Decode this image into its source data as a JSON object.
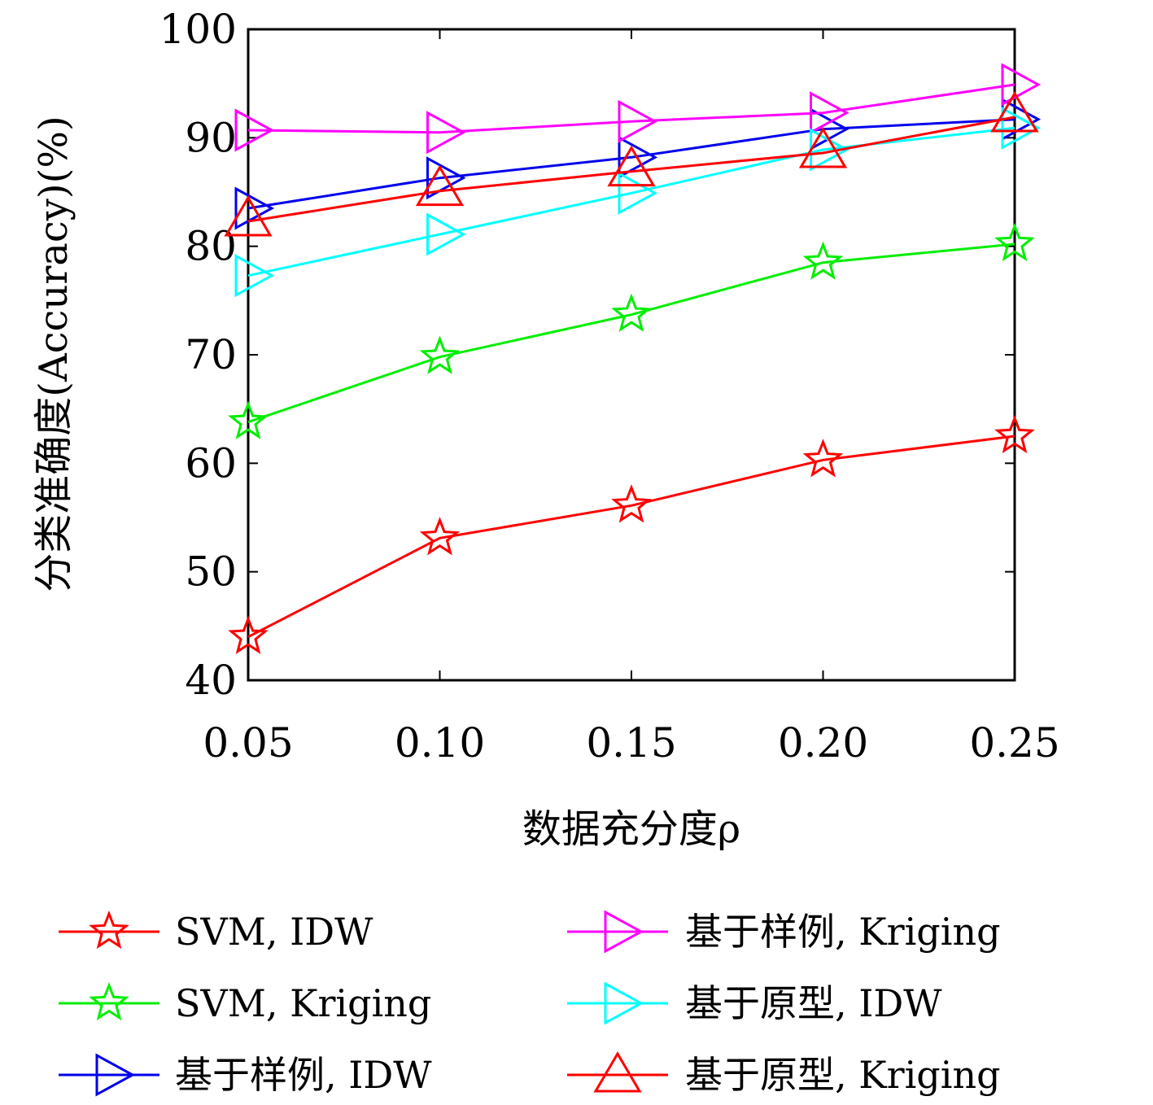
{
  "chart_data": {
    "type": "line",
    "xlabel": "数据充分度ρ",
    "ylabel": "分类准确度(Accuracy)(%)",
    "x": [
      0.05,
      0.1,
      0.15,
      0.2,
      0.25
    ],
    "x_tick_labels": [
      "0.05",
      "0.10",
      "0.15",
      "0.20",
      "0.25"
    ],
    "ylim": [
      40,
      100
    ],
    "y_ticks": [
      40,
      50,
      60,
      70,
      80,
      90,
      100
    ],
    "y_tick_labels": [
      "40",
      "50",
      "60",
      "70",
      "80",
      "90",
      "100"
    ],
    "grid": false,
    "legend_position": "bottom",
    "series": [
      {
        "name": "SVM, IDW",
        "color": "#ff0000",
        "marker": "star",
        "values": [
          44.0,
          53.1,
          56.1,
          60.3,
          62.5
        ]
      },
      {
        "name": "SVM, Kriging",
        "color": "#00ee00",
        "marker": "star",
        "values": [
          63.8,
          69.8,
          73.7,
          78.5,
          80.2
        ]
      },
      {
        "name": "基于样例, IDW",
        "color": "#0000ee",
        "marker": "triangle-right",
        "values": [
          83.5,
          86.3,
          88.2,
          90.8,
          91.7
        ]
      },
      {
        "name": "基于样例, Kriging",
        "color": "#ff00ff",
        "marker": "triangle-right",
        "values": [
          90.7,
          90.5,
          91.5,
          92.3,
          94.9
        ]
      },
      {
        "name": "基于原型, IDW",
        "color": "#00ffff",
        "marker": "triangle-right",
        "values": [
          77.3,
          81.1,
          84.9,
          88.9,
          90.9
        ]
      },
      {
        "name": "基于原型, Kriging",
        "color": "#ff0000",
        "marker": "triangle-up",
        "values": [
          82.3,
          85.1,
          86.9,
          88.6,
          91.9
        ]
      }
    ]
  }
}
